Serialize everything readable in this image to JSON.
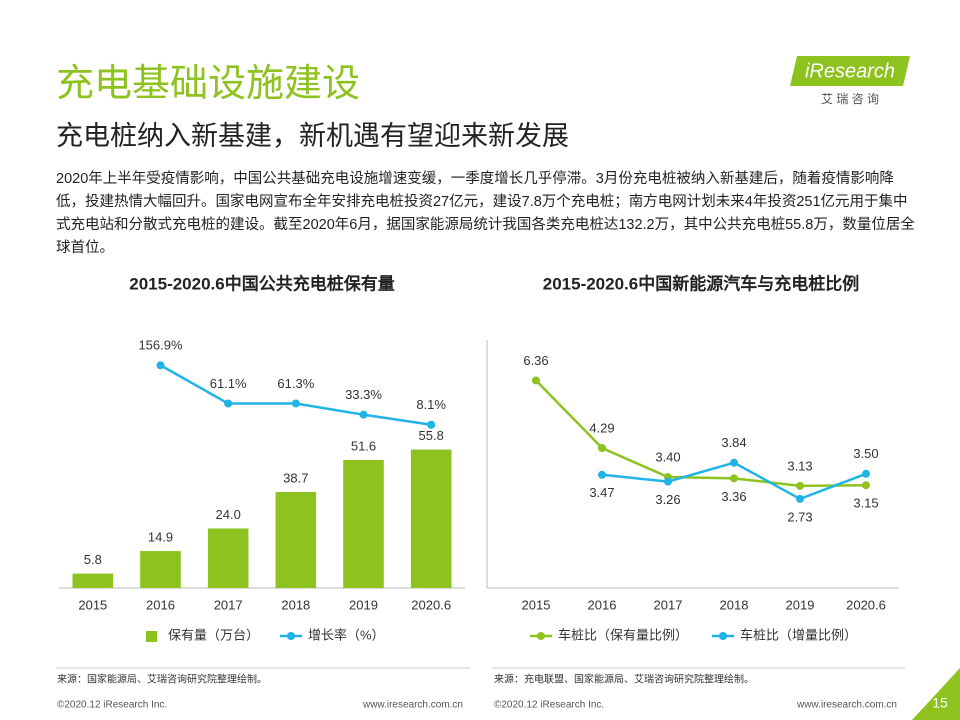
{
  "header": {
    "title": "充电基础设施建设",
    "subtitle": "充电桩纳入新基建，新机遇有望迎来新发展",
    "body": "2020年上半年受疫情影响，中国公共基础充电设施增速变缓，一季度增长几乎停滞。3月份充电桩被纳入新基建后，随着疫情影响降低，投建热情大幅回升。国家电网宣布全年安排充电桩投资27亿元，建设7.8万个充电桩；南方电网计划未来4年投资251亿元用于集中式充电站和分散式充电桩的建设。截至2020年6月，据国家能源局统计我国各类充电桩达132.2万，其中公共充电桩55.8万，数量位居全球首位。"
  },
  "logo": {
    "brand": "iResearch",
    "tagline": "艾 瑞 咨 询"
  },
  "chart_data": [
    {
      "type": "bar",
      "title": "2015-2020.6中国公共充电桩保有量",
      "categories": [
        "2015",
        "2016",
        "2017",
        "2018",
        "2019",
        "2020.6"
      ],
      "ylim": [
        0,
        100
      ],
      "y2lim": [
        -400,
        220
      ],
      "series": [
        {
          "name": "保有量（万台）",
          "color": "#8dc21f",
          "values": [
            5.8,
            14.9,
            24.0,
            38.7,
            51.6,
            55.8
          ],
          "value_labels": [
            "5.8",
            "14.9",
            "24.0",
            "38.7",
            "51.6",
            "55.8"
          ]
        },
        {
          "name": "增长率（%）",
          "color": "#1fb4e6",
          "axis": "y2",
          "values": [
            null,
            156.9,
            61.1,
            61.3,
            33.3,
            8.1
          ],
          "value_labels": [
            null,
            "156.9%",
            "61.1%",
            "61.3%",
            "33.3%",
            "8.1%"
          ]
        }
      ]
    },
    {
      "type": "line",
      "title": "2015-2020.6中国新能源汽车与充电桩比例",
      "categories": [
        "2015",
        "2016",
        "2017",
        "2018",
        "2019",
        "2020.6"
      ],
      "ylim": [
        0,
        7.6
      ],
      "series": [
        {
          "name": "车桩比（保有量比例）",
          "color": "#8dc21f",
          "values": [
            6.36,
            4.29,
            3.4,
            3.36,
            3.13,
            3.15
          ],
          "value_labels": [
            "6.36",
            "4.29",
            "3.40",
            "3.36",
            "3.13",
            "3.15"
          ]
        },
        {
          "name": "车桩比（增量比例）",
          "color": "#1fb4e6",
          "values": [
            null,
            3.47,
            3.26,
            3.84,
            2.73,
            3.5
          ],
          "value_labels": [
            null,
            "3.47",
            "3.26",
            "3.84",
            "2.73",
            "3.50"
          ]
        }
      ]
    }
  ],
  "footer": {
    "sources": [
      "来源：国家能源局、艾瑞咨询研究院整理绘制。",
      "来源：充电联盟、国家能源局、艾瑞咨询研究院整理绘制。"
    ],
    "copyright": [
      "©2020.12 iResearch Inc.",
      "©2020.12 iResearch Inc."
    ],
    "website": [
      "www.iresearch.com.cn",
      "www.iresearch.com.cn"
    ],
    "page": "15"
  }
}
